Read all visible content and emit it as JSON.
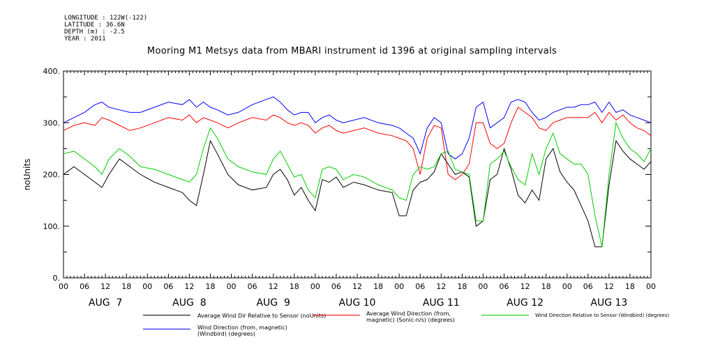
{
  "meta": {
    "longitude": "LONGITUDE : 122W(-122)",
    "latitude": "LATITUDE : 36.6N",
    "depth": "DEPTH (m) : -2.5",
    "year": "YEAR : 2011"
  },
  "chart_data": {
    "type": "line",
    "title": "Mooring M1 Metsys data from MBARI instrument id 1396 at original sampling intervals",
    "xlabel": "",
    "ylabel": "noUnits",
    "ylim": [
      0,
      400
    ],
    "xlim_hours": [
      0,
      168
    ],
    "grid": false,
    "y_ticks": [
      0,
      100,
      200,
      300,
      400
    ],
    "y_tick_labels": [
      "0.",
      "100.",
      "200.",
      "300.",
      "400."
    ],
    "x_hour_labels": [
      "00",
      "06",
      "12",
      "18",
      "00",
      "06",
      "12",
      "18",
      "00",
      "06",
      "12",
      "18",
      "00",
      "06",
      "12",
      "18",
      "00",
      "06",
      "12",
      "18",
      "00",
      "06",
      "12",
      "18",
      "00",
      "06",
      "12",
      "18",
      "00"
    ],
    "x_day_labels": [
      "AUG  7",
      "AUG  8",
      "AUG  9",
      "AUG 10",
      "AUG 11",
      "AUG 12",
      "AUG 13"
    ],
    "x_unit": "hours since 00 AUG 7",
    "series": [
      {
        "name": "Average Wind Dir Relative to Sensor (noUnits)",
        "color": "#000000",
        "x": [
          0,
          3,
          6,
          9,
          11,
          13,
          16,
          19,
          22,
          26,
          30,
          34,
          36,
          38,
          40,
          42,
          44,
          47,
          50,
          54,
          58,
          60,
          62,
          64,
          66,
          68,
          70,
          72,
          74,
          76,
          78,
          80,
          83,
          86,
          90,
          94,
          96,
          98,
          100,
          102,
          104,
          106,
          108,
          110,
          112,
          114,
          116,
          118,
          120,
          122,
          124,
          126,
          128,
          130,
          132,
          134,
          136,
          138,
          140,
          142,
          144,
          146,
          148,
          150,
          152,
          154,
          156,
          158,
          160,
          162,
          164,
          166,
          168
        ],
        "y": [
          200,
          215,
          200,
          185,
          175,
          200,
          230,
          215,
          200,
          185,
          175,
          165,
          150,
          140,
          200,
          265,
          240,
          200,
          180,
          170,
          175,
          200,
          210,
          190,
          160,
          175,
          150,
          130,
          190,
          185,
          195,
          175,
          185,
          180,
          170,
          165,
          120,
          120,
          170,
          185,
          190,
          205,
          240,
          220,
          200,
          205,
          195,
          100,
          110,
          190,
          200,
          250,
          210,
          160,
          145,
          170,
          150,
          230,
          250,
          205,
          185,
          170,
          140,
          110,
          60,
          60,
          180,
          265,
          245,
          230,
          220,
          210,
          225
        ]
      },
      {
        "name": "Average Wind Direction (from, magnetic) (Sonic-n/s) (degrees)",
        "color": "#ff0000",
        "x": [
          0,
          3,
          6,
          9,
          11,
          13,
          16,
          19,
          22,
          26,
          30,
          34,
          36,
          38,
          40,
          42,
          44,
          47,
          50,
          54,
          58,
          60,
          62,
          64,
          66,
          68,
          70,
          72,
          74,
          76,
          78,
          80,
          83,
          86,
          90,
          94,
          96,
          98,
          100,
          102,
          104,
          106,
          108,
          110,
          112,
          114,
          116,
          118,
          120,
          122,
          124,
          126,
          128,
          130,
          132,
          134,
          136,
          138,
          140,
          142,
          144,
          146,
          148,
          150,
          152,
          154,
          156,
          158,
          160,
          162,
          164,
          166,
          168
        ],
        "y": [
          285,
          295,
          300,
          295,
          310,
          305,
          295,
          285,
          290,
          300,
          310,
          305,
          315,
          300,
          310,
          305,
          300,
          290,
          300,
          310,
          305,
          315,
          310,
          300,
          295,
          300,
          295,
          280,
          290,
          295,
          285,
          280,
          285,
          290,
          280,
          275,
          270,
          265,
          250,
          200,
          270,
          295,
          290,
          200,
          190,
          200,
          220,
          300,
          300,
          260,
          250,
          260,
          300,
          330,
          320,
          310,
          290,
          285,
          300,
          305,
          310,
          310,
          310,
          310,
          320,
          300,
          320,
          305,
          315,
          300,
          290,
          285,
          275
        ]
      },
      {
        "name": "Wind Direction Relative to Sensor (Windbird) (degrees)",
        "color": "#00cc00",
        "x": [
          0,
          3,
          6,
          9,
          11,
          13,
          16,
          19,
          22,
          26,
          30,
          34,
          36,
          38,
          40,
          42,
          44,
          47,
          50,
          54,
          58,
          60,
          62,
          64,
          66,
          68,
          70,
          72,
          74,
          76,
          78,
          80,
          83,
          86,
          90,
          94,
          96,
          98,
          100,
          102,
          104,
          106,
          108,
          110,
          112,
          114,
          116,
          118,
          120,
          122,
          124,
          126,
          128,
          130,
          132,
          134,
          136,
          138,
          140,
          142,
          144,
          146,
          148,
          150,
          152,
          154,
          156,
          158,
          160,
          162,
          164,
          166,
          168
        ],
        "y": [
          240,
          245,
          230,
          215,
          200,
          230,
          250,
          235,
          215,
          210,
          200,
          190,
          185,
          200,
          250,
          290,
          270,
          230,
          215,
          205,
          200,
          230,
          245,
          220,
          195,
          200,
          170,
          155,
          210,
          215,
          210,
          190,
          200,
          195,
          180,
          170,
          155,
          150,
          200,
          215,
          210,
          215,
          240,
          245,
          210,
          205,
          200,
          110,
          110,
          220,
          230,
          245,
          215,
          190,
          180,
          240,
          200,
          250,
          280,
          240,
          230,
          220,
          220,
          200,
          120,
          60,
          200,
          300,
          270,
          250,
          240,
          225,
          250
        ]
      },
      {
        "name": "Wind Direction (from, magnetic) (Windbird) (degrees)",
        "color": "#0000ff",
        "x": [
          0,
          3,
          6,
          9,
          11,
          13,
          16,
          19,
          22,
          26,
          30,
          34,
          36,
          38,
          40,
          42,
          44,
          47,
          50,
          54,
          58,
          60,
          62,
          64,
          66,
          68,
          70,
          72,
          74,
          76,
          78,
          80,
          83,
          86,
          90,
          94,
          96,
          98,
          100,
          102,
          104,
          106,
          108,
          110,
          112,
          114,
          116,
          118,
          120,
          122,
          124,
          126,
          128,
          130,
          132,
          134,
          136,
          138,
          140,
          142,
          144,
          146,
          148,
          150,
          152,
          154,
          156,
          158,
          160,
          162,
          164,
          166,
          168
        ],
        "y": [
          300,
          310,
          320,
          335,
          340,
          330,
          325,
          320,
          320,
          330,
          340,
          335,
          345,
          330,
          340,
          330,
          325,
          315,
          320,
          335,
          345,
          350,
          340,
          325,
          315,
          320,
          320,
          300,
          310,
          315,
          305,
          300,
          305,
          310,
          300,
          295,
          290,
          280,
          270,
          240,
          290,
          310,
          300,
          240,
          230,
          240,
          270,
          330,
          340,
          290,
          300,
          310,
          340,
          345,
          340,
          320,
          305,
          310,
          320,
          325,
          330,
          330,
          335,
          335,
          340,
          320,
          340,
          320,
          325,
          315,
          310,
          305,
          300
        ]
      }
    ]
  }
}
